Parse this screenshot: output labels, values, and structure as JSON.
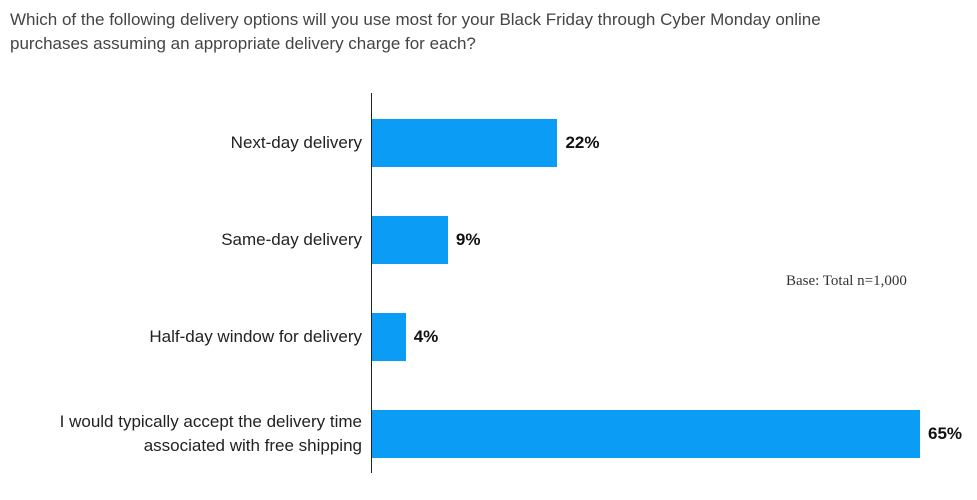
{
  "chart_data": {
    "type": "bar",
    "orientation": "horizontal",
    "title": "Which of the following delivery options will you use most for your Black Friday through Cyber Monday online purchases assuming an appropriate delivery charge for each?",
    "categories": [
      "Next-day delivery",
      "Same-day delivery",
      "Half-day window for delivery",
      "I would typically accept the delivery time associated with free shipping"
    ],
    "values": [
      22,
      9,
      4,
      65
    ],
    "value_labels": [
      "22%",
      "9%",
      "4%",
      "65%"
    ],
    "color": "#0b9cf5",
    "annotation": "Base: Total n=1,000"
  }
}
